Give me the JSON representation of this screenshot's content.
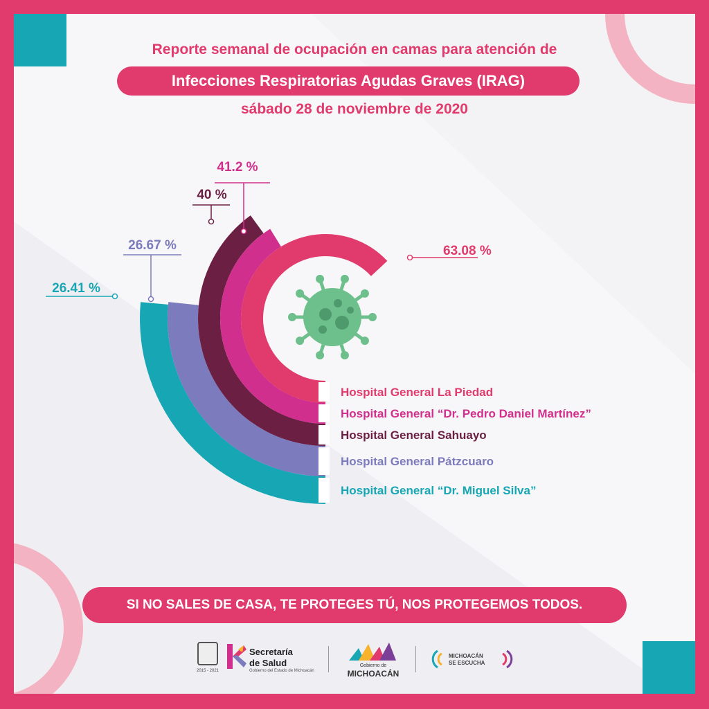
{
  "header": {
    "line1": "Reporte semanal de ocupación en camas para atención de",
    "line2": "Infecciones Respiratorias Agudas Graves (IRAG)",
    "line3": "sábado 28 de noviembre de 2020"
  },
  "colors": {
    "frame": "#e13a6d",
    "accent_teal": "#17a7b4",
    "virus": "#6dbf8c"
  },
  "chart_data": {
    "type": "radial-bar",
    "title": "",
    "series": [
      {
        "name": "Hospital General La Piedad",
        "value": 63.08,
        "label": "63.08 %",
        "color": "#e13a6d"
      },
      {
        "name": "Hospital General “Dr. Pedro Daniel Martínez”",
        "value": 41.2,
        "label": "41.2 %",
        "color": "#d12f8e"
      },
      {
        "name": "Hospital General Sahuayo",
        "value": 40,
        "label": "40 %",
        "color": "#6b1f43"
      },
      {
        "name": "Hospital General Pátzcuaro",
        "value": 26.67,
        "label": "26.67 %",
        "color": "#7b7bbd"
      },
      {
        "name": "Hospital General “Dr. Miguel Silva”",
        "value": 26.41,
        "label": "26.41 %",
        "color": "#17a7b4"
      }
    ]
  },
  "footer": {
    "slogan": "SI NO SALES DE CASA, TE PROTEGES TÚ, NOS PROTEGEMOS TODOS."
  },
  "logos": {
    "seal_years": "2015 - 2021",
    "ssa_line1": "Secretaría",
    "ssa_line2": "de Salud",
    "ssa_line3": "Gobierno del Estado de Michoacán",
    "gob_small": "Gobierno de",
    "gob_big": "MICHOACÁN",
    "esc_line1": "MICHOACÁN",
    "esc_line2": "SE ESCUCHA"
  }
}
